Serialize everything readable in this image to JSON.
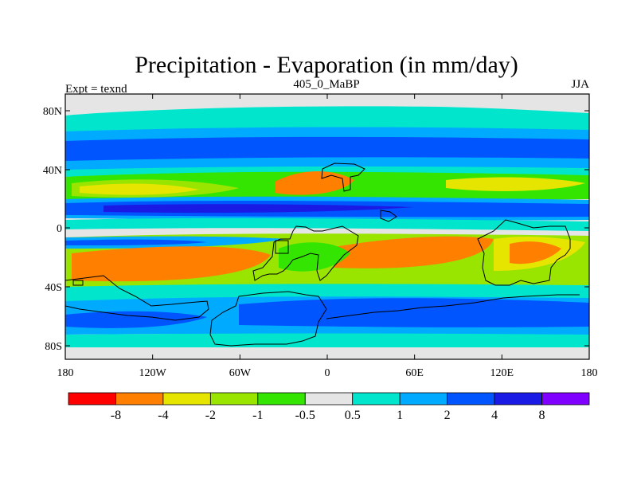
{
  "title": "Precipitation - Evaporation (in mm/day)",
  "subtitle": "405_0_MaBP",
  "left_label": "Expt = texnd",
  "right_label": "JJA",
  "map": {
    "x_ticks": [
      "180",
      "120W",
      "60W",
      "0",
      "60E",
      "120E",
      "180"
    ],
    "y_ticks": [
      "80N",
      "40N",
      "0",
      "40S",
      "80S"
    ]
  },
  "colorbar": {
    "colors": [
      "#ff0000",
      "#ff7f00",
      "#e5e500",
      "#99e500",
      "#33e500",
      "#e5e5e5",
      "#00e5cc",
      "#00aaff",
      "#0055ff",
      "#1a1ae5",
      "#8000ff"
    ],
    "labels": [
      "-8",
      "-4",
      "-2",
      "-1",
      "-0.5",
      "0.5",
      "1",
      "2",
      "4",
      "8"
    ]
  }
}
